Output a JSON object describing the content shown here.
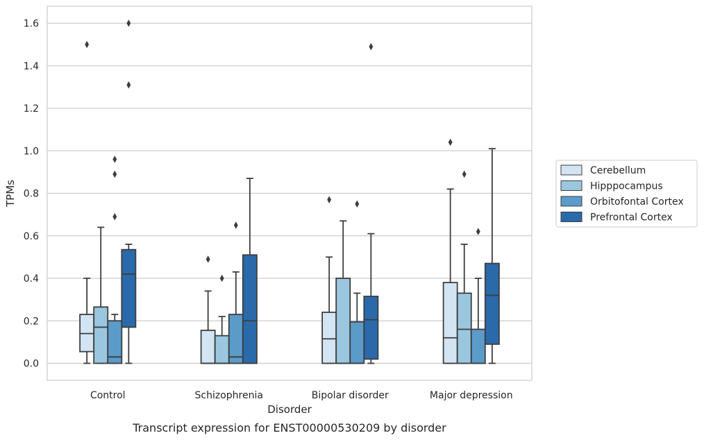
{
  "chart_data": {
    "type": "box",
    "caption": "Transcript expression for ENST00000530209 by disorder",
    "xlabel": "Disorder",
    "ylabel": "TPMs",
    "ylim": [
      -0.08,
      1.68
    ],
    "yticks": [
      0.0,
      0.2,
      0.4,
      0.6,
      0.8,
      1.0,
      1.2,
      1.4,
      1.6
    ],
    "ytick_labels": [
      "0.0",
      "0.2",
      "0.4",
      "0.6",
      "0.8",
      "1.0",
      "1.2",
      "1.4",
      "1.6"
    ],
    "grid": "horizontal",
    "legend_position": "outside-right",
    "categories": [
      "Control",
      "Schizophrenia",
      "Bipolar disorder",
      "Major depression"
    ],
    "series": [
      {
        "name": "Cerebellum",
        "color": "#d3e4f3",
        "boxes": [
          {
            "whislo": 0.0,
            "q1": 0.055,
            "med": 0.14,
            "q3": 0.23,
            "whishi": 0.4,
            "fliers": [
              1.5
            ]
          },
          {
            "whislo": 0.0,
            "q1": 0.0,
            "med": 0.0,
            "q3": 0.155,
            "whishi": 0.34,
            "fliers": [
              0.49
            ]
          },
          {
            "whislo": 0.0,
            "q1": 0.0,
            "med": 0.115,
            "q3": 0.24,
            "whishi": 0.5,
            "fliers": [
              0.77
            ]
          },
          {
            "whislo": 0.0,
            "q1": 0.0,
            "med": 0.12,
            "q3": 0.38,
            "whishi": 0.82,
            "fliers": [
              1.04
            ]
          }
        ]
      },
      {
        "name": "Hipppocampus",
        "color": "#9ac7df",
        "boxes": [
          {
            "whislo": 0.0,
            "q1": 0.0,
            "med": 0.17,
            "q3": 0.265,
            "whishi": 0.64,
            "fliers": []
          },
          {
            "whislo": 0.0,
            "q1": 0.0,
            "med": 0.0,
            "q3": 0.13,
            "whishi": 0.22,
            "fliers": [
              0.4
            ]
          },
          {
            "whislo": 0.0,
            "q1": 0.0,
            "med": 0.0,
            "q3": 0.4,
            "whishi": 0.67,
            "fliers": []
          },
          {
            "whislo": 0.0,
            "q1": 0.0,
            "med": 0.16,
            "q3": 0.33,
            "whishi": 0.56,
            "fliers": [
              0.89
            ]
          }
        ]
      },
      {
        "name": "Orbitofontal Cortex",
        "color": "#5b9bc9",
        "boxes": [
          {
            "whislo": 0.0,
            "q1": 0.0,
            "med": 0.03,
            "q3": 0.2,
            "whishi": 0.23,
            "fliers": [
              0.69,
              0.89,
              0.96
            ]
          },
          {
            "whislo": 0.0,
            "q1": 0.0,
            "med": 0.03,
            "q3": 0.23,
            "whishi": 0.43,
            "fliers": [
              0.65
            ]
          },
          {
            "whislo": 0.0,
            "q1": 0.0,
            "med": 0.0,
            "q3": 0.195,
            "whishi": 0.33,
            "fliers": [
              0.75
            ]
          },
          {
            "whislo": 0.0,
            "q1": 0.0,
            "med": 0.0,
            "q3": 0.16,
            "whishi": 0.4,
            "fliers": [
              0.62
            ]
          }
        ]
      },
      {
        "name": "Prefrontal Cortex",
        "color": "#2a6aaa",
        "boxes": [
          {
            "whislo": 0.0,
            "q1": 0.17,
            "med": 0.42,
            "q3": 0.535,
            "whishi": 0.56,
            "fliers": [
              1.31,
              1.6
            ]
          },
          {
            "whislo": 0.0,
            "q1": 0.0,
            "med": 0.2,
            "q3": 0.51,
            "whishi": 0.87,
            "fliers": []
          },
          {
            "whislo": 0.0,
            "q1": 0.02,
            "med": 0.205,
            "q3": 0.315,
            "whishi": 0.61,
            "fliers": [
              1.49
            ]
          },
          {
            "whislo": 0.0,
            "q1": 0.09,
            "med": 0.32,
            "q3": 0.47,
            "whishi": 1.01,
            "fliers": []
          }
        ]
      }
    ]
  }
}
